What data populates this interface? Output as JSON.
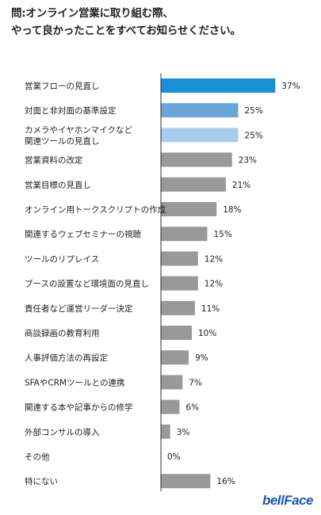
{
  "chart_data": {
    "type": "bar",
    "orientation": "horizontal",
    "title_lines": [
      "問:オンライン営業に取り組む際、",
      "やって良かったことをすべてお知らせください。"
    ],
    "categories": [
      [
        "営業フローの見直し"
      ],
      [
        "対面と非対面の基準設定"
      ],
      [
        "カメラやイヤホンマイクなど",
        "関連ツールの見直し"
      ],
      [
        "営業資料の改定"
      ],
      [
        "営業目標の見直し"
      ],
      [
        "オンライン用トークスクリプトの作成"
      ],
      [
        "関連するウェブセミナーの視聴"
      ],
      [
        "ツールのリプレイス"
      ],
      [
        "ブースの設置など環境面の見直し"
      ],
      [
        "責任者など運営リーダー決定"
      ],
      [
        "商談録画の教育利用"
      ],
      [
        "人事評価方法の再設定"
      ],
      [
        "SFAやCRMツールとの連携"
      ],
      [
        "関連する本や記事からの修学"
      ],
      [
        "外部コンサルの導入"
      ],
      [
        "その他"
      ],
      [
        "特にない"
      ]
    ],
    "values": [
      37,
      25,
      25,
      23,
      21,
      18,
      15,
      12,
      12,
      11,
      10,
      9,
      7,
      6,
      3,
      0,
      16
    ],
    "value_labels": [
      "37%",
      "25%",
      "25%",
      "23%",
      "21%",
      "18%",
      "15%",
      "12%",
      "12%",
      "11%",
      "10%",
      "9%",
      "7%",
      "6%",
      "3%",
      "0%",
      "16%"
    ],
    "colors": [
      "#1a8fd6",
      "#6aa6d8",
      "#a8cdec",
      "#999999",
      "#999999",
      "#999999",
      "#999999",
      "#999999",
      "#999999",
      "#999999",
      "#999999",
      "#999999",
      "#999999",
      "#999999",
      "#999999",
      "#999999",
      "#999999"
    ],
    "xlim": [
      0,
      40
    ]
  },
  "brand": {
    "logo": "bellFace"
  }
}
